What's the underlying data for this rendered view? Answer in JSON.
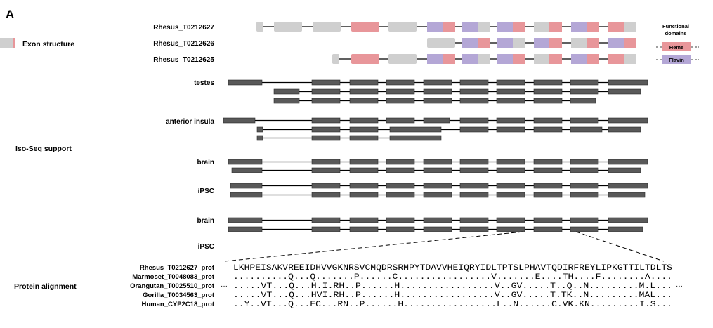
{
  "panel_label": "A",
  "sections": {
    "exon_structure": "Exon structure",
    "iso_seq_support": "Iso-Seq support",
    "protein_alignment": "Protein alignment"
  },
  "transcripts": [
    {
      "name": "Rhesus_T0212627",
      "exons": [
        "gray",
        "gray",
        "gray",
        "heme",
        "gray",
        "flavin-heme",
        "flavin-gray",
        "flavin-heme",
        "gray-heme",
        "flavin-heme",
        "heme-gray"
      ]
    },
    {
      "name": "Rhesus_T0212626",
      "exons": [
        "gray",
        "flavin-heme",
        "flavin-gray",
        "flavin-heme",
        "gray-heme",
        "flavin-heme",
        "heme-gray"
      ]
    },
    {
      "name": "Rhesus_T0212625",
      "exons": [
        "gray-small",
        "heme",
        "gray",
        "flavin-heme",
        "flavin-gray",
        "flavin-heme",
        "gray-heme",
        "flavin-heme",
        "heme-gray"
      ]
    }
  ],
  "legend": {
    "title_line1": "Functional",
    "title_line2": "domains",
    "heme": "Heme",
    "flavin": "Flavin",
    "heme_color": "#e8969a",
    "flavin_color": "#b4a7d6",
    "gray_color": "#cfcfcf"
  },
  "tissues": [
    "testes",
    "anterior insula",
    "brain",
    "iPSC",
    "brain",
    "iPSC"
  ],
  "alignment": {
    "rows": [
      {
        "name": "Rhesus_T0212627_prot",
        "seq": "LKHPEISAKVREEIDHVVGKNRSVCMQDRSRMPYTDAVVHEIQRYIDLTPTSLPHAVTQDIRFREYLIPKGTTILTDLTS",
        "lead": "",
        "trail": ""
      },
      {
        "name": "Marmoset_T0048083_prot",
        "seq": "..........Q...Q.......P......C.................V.......E....TH....F........A....",
        "lead": "",
        "trail": ""
      },
      {
        "name": "Orangutan_T0025510_prot",
        "seq": ".....VT...Q...H.I.RH..P......H.................V..GV.....T..Q..N.........M.L...",
        "lead": "···",
        "trail": "···"
      },
      {
        "name": "Gorilla_T0034563_prot",
        "seq": ".....VT...Q...HVI.RH..P......H.................V..GV.....T.TK..N.........MAL...",
        "lead": "",
        "trail": ""
      },
      {
        "name": "Human_CYP2C18_prot",
        "seq": "..Y..VT...Q...EC...RN..P......H.................L..N......C.VK.KN.........I.S...",
        "lead": "",
        "trail": ""
      }
    ]
  },
  "colors": {
    "read_block": "#595959",
    "read_block_edge": "#2b2b2b",
    "line": "#000000"
  }
}
